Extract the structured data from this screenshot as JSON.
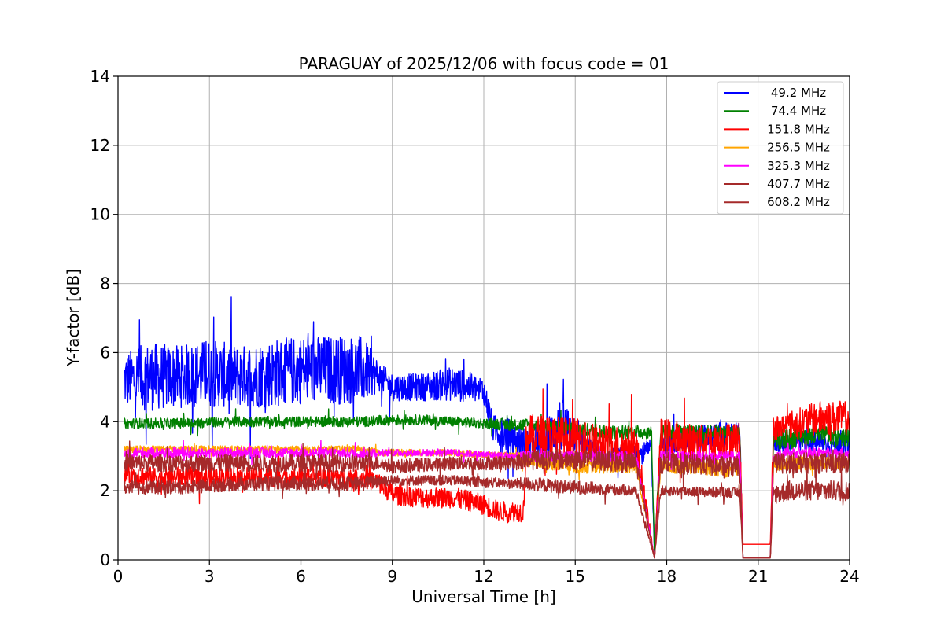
{
  "chart_data": {
    "type": "line",
    "title": "PARAGUAY of 2025/12/06 with focus code = 01",
    "xlabel": "Universal Time [h]",
    "ylabel": "Y-factor [dB]",
    "xlim": [
      0,
      24
    ],
    "ylim": [
      0,
      14
    ],
    "xticks": [
      "0",
      "3",
      "6",
      "9",
      "12",
      "15",
      "18",
      "21",
      "24"
    ],
    "yticks": [
      "0",
      "2",
      "4",
      "6",
      "8",
      "10",
      "12",
      "14"
    ],
    "grid": true,
    "legend_position": "top-right",
    "series": [
      {
        "name": " 49.2 MHz",
        "color": "#0000ff",
        "x": [
          0.2,
          1.0,
          2.0,
          3.0,
          4.0,
          5.0,
          6.0,
          7.0,
          8.0,
          8.6,
          9.0,
          10.0,
          11.0,
          12.0,
          12.3,
          12.8,
          13.4,
          14.0,
          14.5,
          15.0,
          15.5,
          16.0,
          17.0,
          17.5,
          17.6,
          17.8,
          18.0,
          19.0,
          20.0,
          20.4,
          20.5,
          21.4,
          21.5,
          22.0,
          23.0,
          24.0
        ],
        "mid": [
          5.2,
          5.3,
          5.3,
          5.4,
          5.3,
          5.4,
          5.5,
          5.5,
          5.5,
          5.3,
          5.0,
          5.0,
          5.1,
          4.9,
          3.8,
          3.6,
          3.3,
          3.4,
          3.9,
          3.7,
          3.1,
          3.0,
          3.0,
          3.2,
          0.1,
          3.3,
          3.4,
          3.5,
          3.6,
          3.6,
          0.05,
          0.05,
          3.4,
          3.4,
          3.4,
          3.3
        ],
        "spread": [
          0.8,
          1.0,
          0.9,
          1.0,
          0.9,
          1.0,
          1.0,
          1.0,
          1.0,
          0.4,
          0.4,
          0.4,
          0.5,
          0.4,
          0.4,
          0.5,
          0.5,
          0.6,
          0.8,
          0.6,
          0.4,
          0.3,
          0.3,
          0.3,
          0.0,
          0.3,
          0.3,
          0.4,
          0.4,
          0.4,
          0.0,
          0.0,
          0.3,
          0.3,
          0.3,
          0.3
        ]
      },
      {
        "name": " 74.4 MHz",
        "color": "#008000",
        "x": [
          0.2,
          2.0,
          4.0,
          6.0,
          8.0,
          9.0,
          10.0,
          11.0,
          12.0,
          13.4,
          14.0,
          15.0,
          16.0,
          17.5,
          17.6,
          17.8,
          18.0,
          19.0,
          20.0,
          20.4,
          20.5,
          21.4,
          21.5,
          22.0,
          23.0,
          24.0
        ],
        "mid": [
          3.95,
          3.95,
          4.0,
          4.0,
          4.0,
          4.05,
          4.05,
          4.0,
          3.95,
          3.9,
          3.9,
          3.8,
          3.7,
          3.7,
          0.15,
          3.7,
          3.7,
          3.7,
          3.7,
          3.7,
          0.05,
          0.05,
          3.5,
          3.5,
          3.6,
          3.6
        ],
        "spread": [
          0.15,
          0.15,
          0.15,
          0.15,
          0.15,
          0.15,
          0.15,
          0.15,
          0.15,
          0.2,
          0.2,
          0.2,
          0.2,
          0.2,
          0.0,
          0.2,
          0.2,
          0.2,
          0.2,
          0.2,
          0.0,
          0.0,
          0.3,
          0.3,
          0.3,
          0.3
        ]
      },
      {
        "name": "151.8 MHz",
        "color": "#ff0000",
        "x": [
          0.2,
          1.0,
          2.0,
          3.0,
          4.0,
          5.0,
          6.0,
          7.0,
          8.0,
          8.6,
          9.0,
          10.0,
          11.0,
          12.0,
          12.5,
          13.3,
          13.4,
          14.0,
          15.0,
          16.0,
          17.0,
          17.6,
          17.8,
          18.0,
          19.0,
          20.0,
          20.4,
          20.5,
          21.4,
          21.5,
          22.0,
          23.0,
          24.0
        ],
        "mid": [
          2.5,
          2.4,
          2.4,
          2.4,
          2.4,
          2.4,
          2.4,
          2.4,
          2.4,
          2.2,
          1.9,
          1.8,
          1.8,
          1.6,
          1.4,
          1.4,
          3.6,
          3.6,
          3.5,
          3.3,
          3.3,
          0.05,
          3.5,
          3.5,
          3.4,
          3.5,
          3.5,
          0.45,
          0.45,
          3.8,
          3.9,
          4.1,
          4.1
        ],
        "spread": [
          0.3,
          0.3,
          0.3,
          0.3,
          0.3,
          0.3,
          0.3,
          0.3,
          0.3,
          0.3,
          0.3,
          0.3,
          0.3,
          0.3,
          0.3,
          0.3,
          0.6,
          0.6,
          0.6,
          0.6,
          0.6,
          0.0,
          0.6,
          0.6,
          0.5,
          0.5,
          0.5,
          0.0,
          0.0,
          0.4,
          0.4,
          0.5,
          0.5
        ]
      },
      {
        "name": "256.5 MHz",
        "color": "#ffa500",
        "x": [
          0.2,
          2.0,
          4.0,
          6.0,
          8.0,
          8.6,
          9.0,
          11.0,
          13.0,
          13.4,
          15.0,
          17.0,
          17.6,
          17.8,
          18.0,
          20.0,
          20.4,
          20.5,
          21.4,
          21.5,
          22.0,
          24.0
        ],
        "mid": [
          3.2,
          3.2,
          3.2,
          3.2,
          3.2,
          3.1,
          3.1,
          3.1,
          3.0,
          2.9,
          2.7,
          2.7,
          0.05,
          2.7,
          2.7,
          2.6,
          2.6,
          0.05,
          0.05,
          2.7,
          2.8,
          2.8
        ],
        "spread": [
          0.1,
          0.1,
          0.1,
          0.1,
          0.1,
          0.1,
          0.1,
          0.1,
          0.1,
          0.2,
          0.2,
          0.2,
          0.0,
          0.2,
          0.2,
          0.2,
          0.2,
          0.0,
          0.0,
          0.2,
          0.2,
          0.2
        ]
      },
      {
        "name": "325.3 MHz",
        "color": "#ff00ff",
        "x": [
          0.2,
          2.0,
          4.0,
          6.0,
          8.0,
          8.6,
          9.0,
          11.0,
          13.0,
          13.4,
          15.0,
          17.0,
          17.6,
          17.8,
          18.0,
          20.0,
          20.4,
          20.5,
          21.4,
          21.5,
          22.0,
          24.0
        ],
        "mid": [
          3.1,
          3.1,
          3.1,
          3.1,
          3.1,
          3.1,
          3.1,
          3.1,
          3.0,
          3.0,
          3.0,
          3.0,
          0.05,
          3.0,
          3.0,
          3.0,
          3.0,
          0.05,
          0.05,
          3.0,
          3.1,
          3.1
        ],
        "spread": [
          0.15,
          0.15,
          0.15,
          0.15,
          0.15,
          0.1,
          0.1,
          0.1,
          0.1,
          0.15,
          0.15,
          0.15,
          0.0,
          0.15,
          0.15,
          0.15,
          0.15,
          0.0,
          0.0,
          0.15,
          0.15,
          0.15
        ]
      },
      {
        "name": "407.7 MHz",
        "color": "#a52a2a",
        "x": [
          0.2,
          2.0,
          4.0,
          6.0,
          8.0,
          8.6,
          9.0,
          11.0,
          13.0,
          13.4,
          15.0,
          17.0,
          17.6,
          17.8,
          18.0,
          20.0,
          20.4,
          20.5,
          21.4,
          21.5,
          22.0,
          24.0
        ],
        "mid": [
          2.8,
          2.8,
          2.8,
          2.8,
          2.8,
          2.8,
          2.7,
          2.8,
          2.8,
          2.9,
          2.9,
          2.8,
          0.05,
          2.8,
          2.8,
          2.7,
          2.7,
          0.05,
          0.05,
          2.8,
          2.8,
          2.8
        ],
        "spread": [
          0.25,
          0.25,
          0.25,
          0.25,
          0.25,
          0.2,
          0.2,
          0.2,
          0.2,
          0.3,
          0.3,
          0.3,
          0.0,
          0.3,
          0.3,
          0.3,
          0.3,
          0.0,
          0.0,
          0.3,
          0.3,
          0.3
        ]
      },
      {
        "name": "608.2 MHz",
        "color": "#a52a2a",
        "x": [
          0.2,
          2.0,
          4.0,
          6.0,
          8.0,
          8.6,
          9.0,
          11.0,
          13.0,
          13.4,
          15.0,
          17.0,
          17.6,
          17.8,
          18.0,
          20.0,
          20.4,
          20.5,
          21.4,
          21.5,
          22.0,
          24.0
        ],
        "mid": [
          2.1,
          2.1,
          2.2,
          2.2,
          2.2,
          2.3,
          2.3,
          2.3,
          2.2,
          2.2,
          2.1,
          2.0,
          0.05,
          2.0,
          2.0,
          1.95,
          1.95,
          0.05,
          0.05,
          1.9,
          2.0,
          2.0
        ],
        "spread": [
          0.2,
          0.2,
          0.2,
          0.2,
          0.2,
          0.2,
          0.15,
          0.15,
          0.15,
          0.2,
          0.2,
          0.15,
          0.0,
          0.15,
          0.15,
          0.15,
          0.15,
          0.0,
          0.0,
          0.3,
          0.3,
          0.3
        ]
      }
    ]
  }
}
